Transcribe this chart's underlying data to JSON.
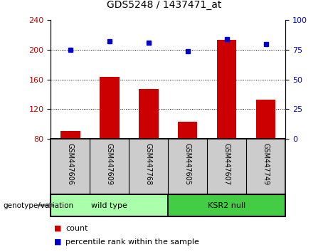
{
  "title": "GDS5248 / 1437471_at",
  "samples": [
    "GSM447606",
    "GSM447609",
    "GSM447768",
    "GSM447605",
    "GSM447607",
    "GSM447749"
  ],
  "counts": [
    90,
    163,
    147,
    103,
    213,
    133
  ],
  "percentile_ranks": [
    75,
    82,
    81,
    74,
    84,
    80
  ],
  "groups": [
    {
      "label": "wild type",
      "color": "#aaffaa",
      "indices": [
        0,
        1,
        2
      ]
    },
    {
      "label": "KSR2 null",
      "color": "#44cc44",
      "indices": [
        3,
        4,
        5
      ]
    }
  ],
  "bar_color": "#cc0000",
  "dot_color": "#0000cc",
  "ymin": 80,
  "ymax": 240,
  "yticks_left": [
    80,
    120,
    160,
    200,
    240
  ],
  "yticks_right": [
    0,
    25,
    50,
    75,
    100
  ],
  "grid_values": [
    120,
    160,
    200
  ],
  "panel_bg": "#cccccc",
  "group_bg_light": "#aaffaa",
  "group_bg_dark": "#44cc44",
  "legend_count_label": "count",
  "legend_pct_label": "percentile rank within the sample",
  "xlabel_label": "genotype/variation"
}
